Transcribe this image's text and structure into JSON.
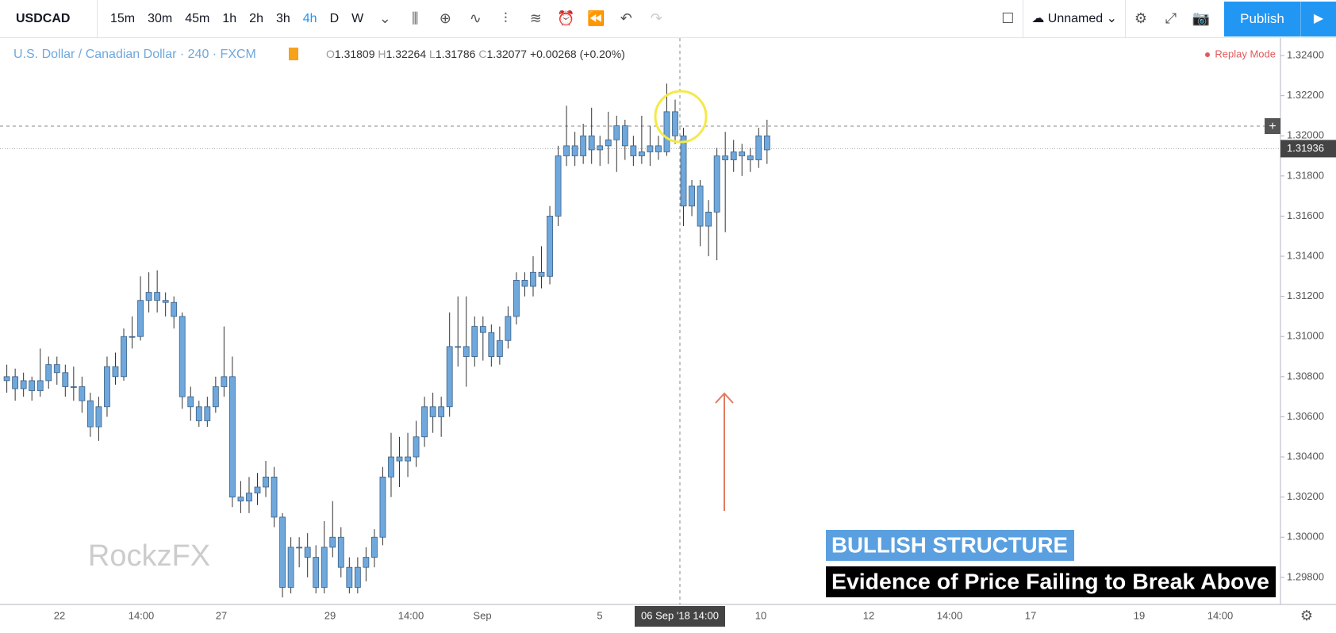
{
  "toolbar": {
    "symbol": "USDCAD",
    "intervals": [
      "15m",
      "30m",
      "45m",
      "1h",
      "2h",
      "3h",
      "4h",
      "D",
      "W"
    ],
    "active_interval": "4h",
    "layout_name": "Unnamed",
    "publish": "Publish"
  },
  "chart_data": {
    "type": "candlestick",
    "title": "U.S. Dollar / Canadian Dollar · 240 · FXCM",
    "legend": [
      {
        "key": "O",
        "value": "1.31809"
      },
      {
        "key": "H",
        "value": "1.32264"
      },
      {
        "key": "L",
        "value": "1.31786"
      },
      {
        "key": "C",
        "value": "1.32077"
      }
    ],
    "change": "+0.00268 (+0.20%)",
    "replay": "Replay Mode",
    "color": "#6fa8dc",
    "ohlc": [
      [
        1.3078,
        1.3086,
        1.3072,
        1.308
      ],
      [
        1.308,
        1.3084,
        1.3068,
        1.3074
      ],
      [
        1.3074,
        1.3082,
        1.307,
        1.3078
      ],
      [
        1.3078,
        1.308,
        1.3068,
        1.3073
      ],
      [
        1.3073,
        1.3094,
        1.307,
        1.3078
      ],
      [
        1.3078,
        1.309,
        1.3074,
        1.3086
      ],
      [
        1.3086,
        1.309,
        1.3076,
        1.3082
      ],
      [
        1.3082,
        1.3086,
        1.307,
        1.3075
      ],
      [
        1.3075,
        1.3085,
        1.3068,
        1.3075
      ],
      [
        1.3075,
        1.308,
        1.3062,
        1.3068
      ],
      [
        1.3068,
        1.3072,
        1.305,
        1.3055
      ],
      [
        1.3055,
        1.307,
        1.3048,
        1.3065
      ],
      [
        1.3065,
        1.309,
        1.306,
        1.3085
      ],
      [
        1.3085,
        1.3092,
        1.3076,
        1.308
      ],
      [
        1.308,
        1.3104,
        1.3078,
        1.31
      ],
      [
        1.31,
        1.311,
        1.3094,
        1.31
      ],
      [
        1.31,
        1.313,
        1.3098,
        1.3118
      ],
      [
        1.3118,
        1.3132,
        1.3112,
        1.3122
      ],
      [
        1.3122,
        1.3133,
        1.3112,
        1.3118
      ],
      [
        1.3118,
        1.3122,
        1.311,
        1.3117
      ],
      [
        1.3117,
        1.312,
        1.3104,
        1.311
      ],
      [
        1.311,
        1.3112,
        1.3064,
        1.307
      ],
      [
        1.307,
        1.3075,
        1.3058,
        1.3065
      ],
      [
        1.3065,
        1.3068,
        1.3055,
        1.3058
      ],
      [
        1.3058,
        1.307,
        1.3055,
        1.3065
      ],
      [
        1.3065,
        1.308,
        1.3062,
        1.3075
      ],
      [
        1.3075,
        1.3105,
        1.307,
        1.308
      ],
      [
        1.308,
        1.309,
        1.3015,
        1.302
      ],
      [
        1.302,
        1.3028,
        1.3012,
        1.3018
      ],
      [
        1.3018,
        1.303,
        1.3012,
        1.3022
      ],
      [
        1.3022,
        1.3032,
        1.3016,
        1.3025
      ],
      [
        1.3025,
        1.3038,
        1.302,
        1.303
      ],
      [
        1.303,
        1.3035,
        1.3005,
        1.301
      ],
      [
        1.301,
        1.3012,
        1.297,
        1.2975
      ],
      [
        1.2975,
        1.3,
        1.2972,
        1.2995
      ],
      [
        1.2995,
        1.3,
        1.2985,
        1.2995
      ],
      [
        1.2995,
        1.3002,
        1.298,
        1.299
      ],
      [
        1.299,
        1.2996,
        1.2972,
        1.2975
      ],
      [
        1.2975,
        1.3008,
        1.2972,
        1.2995
      ],
      [
        1.2995,
        1.3018,
        1.299,
        1.3
      ],
      [
        1.3,
        1.3005,
        1.298,
        1.2985
      ],
      [
        1.2985,
        1.299,
        1.2972,
        1.2975
      ],
      [
        1.2975,
        1.299,
        1.2972,
        1.2985
      ],
      [
        1.2985,
        1.2995,
        1.2978,
        1.299
      ],
      [
        1.299,
        1.3004,
        1.2985,
        1.3
      ],
      [
        1.3,
        1.3035,
        1.2996,
        1.303
      ],
      [
        1.303,
        1.3052,
        1.302,
        1.304
      ],
      [
        1.304,
        1.305,
        1.3025,
        1.3038
      ],
      [
        1.3038,
        1.3052,
        1.303,
        1.304
      ],
      [
        1.304,
        1.3058,
        1.3035,
        1.305
      ],
      [
        1.305,
        1.307,
        1.3045,
        1.3065
      ],
      [
        1.3065,
        1.3072,
        1.3052,
        1.306
      ],
      [
        1.306,
        1.307,
        1.305,
        1.3065
      ],
      [
        1.3065,
        1.3112,
        1.306,
        1.3095
      ],
      [
        1.3095,
        1.312,
        1.3085,
        1.3095
      ],
      [
        1.3095,
        1.312,
        1.3075,
        1.309
      ],
      [
        1.309,
        1.311,
        1.3085,
        1.3105
      ],
      [
        1.3105,
        1.311,
        1.3088,
        1.3102
      ],
      [
        1.3102,
        1.3106,
        1.3085,
        1.309
      ],
      [
        1.309,
        1.3105,
        1.3086,
        1.3098
      ],
      [
        1.3098,
        1.3115,
        1.3094,
        1.311
      ],
      [
        1.311,
        1.3132,
        1.3106,
        1.3128
      ],
      [
        1.3128,
        1.3132,
        1.312,
        1.3125
      ],
      [
        1.3125,
        1.314,
        1.312,
        1.3132
      ],
      [
        1.3132,
        1.3145,
        1.3124,
        1.313
      ],
      [
        1.313,
        1.3165,
        1.3126,
        1.316
      ],
      [
        1.316,
        1.3195,
        1.3155,
        1.319
      ],
      [
        1.319,
        1.3215,
        1.3185,
        1.3195
      ],
      [
        1.3195,
        1.3202,
        1.3185,
        1.319
      ],
      [
        1.319,
        1.3206,
        1.3186,
        1.32
      ],
      [
        1.32,
        1.3214,
        1.3186,
        1.3193
      ],
      [
        1.3193,
        1.32,
        1.3185,
        1.3195
      ],
      [
        1.3195,
        1.3212,
        1.3186,
        1.3198
      ],
      [
        1.3198,
        1.321,
        1.3182,
        1.3205
      ],
      [
        1.3205,
        1.3208,
        1.3188,
        1.3195
      ],
      [
        1.3195,
        1.32,
        1.3185,
        1.319
      ],
      [
        1.319,
        1.321,
        1.3186,
        1.3192
      ],
      [
        1.3192,
        1.3205,
        1.3185,
        1.3195
      ],
      [
        1.3195,
        1.32,
        1.3188,
        1.3192
      ],
      [
        1.3192,
        1.3226,
        1.319,
        1.3212
      ],
      [
        1.3212,
        1.3218,
        1.3196,
        1.32
      ],
      [
        1.32,
        1.3204,
        1.3155,
        1.3165
      ],
      [
        1.3165,
        1.3178,
        1.316,
        1.3175
      ],
      [
        1.3175,
        1.3178,
        1.3145,
        1.3155
      ],
      [
        1.3155,
        1.3168,
        1.314,
        1.3162
      ],
      [
        1.3162,
        1.3194,
        1.3138,
        1.319
      ],
      [
        1.319,
        1.3202,
        1.3152,
        1.3188
      ],
      [
        1.3188,
        1.3198,
        1.3182,
        1.3192
      ],
      [
        1.3192,
        1.3196,
        1.318,
        1.319
      ],
      [
        1.319,
        1.3194,
        1.3182,
        1.3188
      ],
      [
        1.3188,
        1.3204,
        1.3184,
        1.32
      ],
      [
        1.32,
        1.3208,
        1.3186,
        1.3193
      ]
    ],
    "ylim": [
      1.29665,
      1.32487
    ],
    "yticks": [
      {
        "value": 1.324,
        "label": "1.32400"
      },
      {
        "value": 1.322,
        "label": "1.32200"
      },
      {
        "value": 1.32,
        "label": "1.32000"
      },
      {
        "value": 1.318,
        "label": "1.31800"
      },
      {
        "value": 1.316,
        "label": "1.31600"
      },
      {
        "value": 1.314,
        "label": "1.31400"
      },
      {
        "value": 1.312,
        "label": "1.31200"
      },
      {
        "value": 1.31,
        "label": "1.31000"
      },
      {
        "value": 1.308,
        "label": "1.30800"
      },
      {
        "value": 1.306,
        "label": "1.30600"
      },
      {
        "value": 1.304,
        "label": "1.30400"
      },
      {
        "value": 1.302,
        "label": "1.30200"
      },
      {
        "value": 1.3,
        "label": "1.30000"
      },
      {
        "value": 1.298,
        "label": "1.29800"
      }
    ],
    "last_price": {
      "value": 1.31936,
      "label": "1.31936"
    },
    "x_labels": [
      "22",
      "14:00",
      "27",
      "29",
      "14:00",
      "Sep",
      "5",
      "10",
      "12",
      "14:00",
      "17",
      "19",
      "14:00"
    ],
    "crosshair_label": "06 Sep '18   14:00",
    "annotations": [
      "BULLISH STRUCTURE",
      "Evidence of Price Failing to Break Above"
    ],
    "watermark": "RockzFX"
  }
}
